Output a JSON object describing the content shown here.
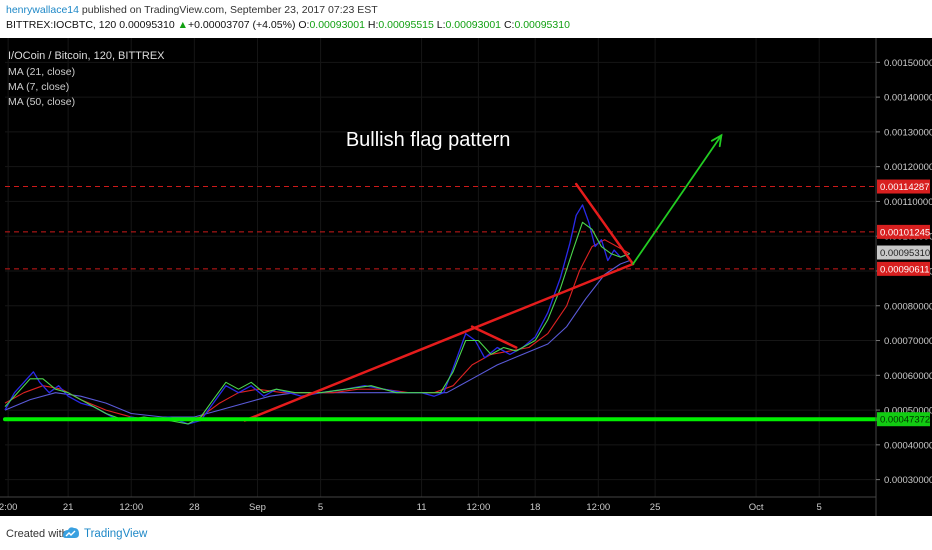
{
  "header": {
    "username": "henrywallace14",
    "published_text": "published on TradingView.com, September 23, 2017 07:23 EST",
    "symbol": "BITTREX:IOCBTC, 120",
    "last_price": "0.00095310",
    "change": "+0.00003707 (+4.05%)",
    "open_label": "O:",
    "open": "0.00093001",
    "high_label": "H:",
    "high": "0.00095515",
    "low_label": "L:",
    "low": "0.00093001",
    "close_label": "C:",
    "close": "0.00095310"
  },
  "legend": {
    "title": "I/OCoin / Bitcoin, 120, BITTREX",
    "ma1": "MA (21, close)",
    "ma2": "MA (7, close)",
    "ma3": "MA (50, close)"
  },
  "annotation": {
    "text": "Bullish flag pattern"
  },
  "footer": {
    "created_with": "Created with",
    "brand": "TradingView"
  },
  "colors": {
    "background": "#000000",
    "price_line": "#2a2ae8",
    "ma21": "#dd2222",
    "ma7": "#4cd64c",
    "ma50": "#5a5ad8",
    "trend_lines": "#e51c1c",
    "support_line": "#00ee00",
    "forecast_arrow": "#22cc22",
    "dashed_levels": "#cc1a1a",
    "axis_text": "#cccccc"
  },
  "chart_data": {
    "type": "line",
    "y_scale": "linear",
    "ylim": [
      0.00025,
      0.00157
    ],
    "xlim": [
      0,
      26
    ],
    "x_ticks": [
      {
        "x": 0.05,
        "label": "2:00"
      },
      {
        "x": 1,
        "label": "21"
      },
      {
        "x": 2,
        "label": "12:00"
      },
      {
        "x": 3,
        "label": "28"
      },
      {
        "x": 4,
        "label": "Sep"
      },
      {
        "x": 5,
        "label": "5"
      },
      {
        "x": 6.6,
        "label": "11"
      },
      {
        "x": 7.5,
        "label": "12:00"
      },
      {
        "x": 8.4,
        "label": "18"
      },
      {
        "x": 9.4,
        "label": "12:00"
      },
      {
        "x": 10.3,
        "label": "25"
      },
      {
        "x": 11.9,
        "label": "Oct"
      },
      {
        "x": 12.9,
        "label": "5"
      }
    ],
    "y_ticks": [
      "0.00030000",
      "0.00040000",
      "0.00050000",
      "0.00060000",
      "0.00070000",
      "0.00080000",
      "0.00090000",
      "0.00100000",
      "0.00110000",
      "0.00120000",
      "0.00130000",
      "0.00140000",
      "0.00150000"
    ],
    "price_levels": [
      {
        "value": 0.00114287,
        "label": "0.00114287",
        "kind": "resistance"
      },
      {
        "value": 0.00101245,
        "label": "0.00101245",
        "kind": "resistance"
      },
      {
        "value": 0.0009531,
        "label": "0.00095310",
        "kind": "last"
      },
      {
        "value": 0.00090611,
        "label": "0.00090611",
        "kind": "support"
      },
      {
        "value": 0.00047372,
        "label": "0.00047372",
        "kind": "support-green"
      }
    ],
    "series": [
      {
        "key": "price",
        "points": [
          [
            0,
            0.0005
          ],
          [
            0.15,
            0.00055
          ],
          [
            0.3,
            0.00058
          ],
          [
            0.45,
            0.00061
          ],
          [
            0.55,
            0.00058
          ],
          [
            0.7,
            0.00055
          ],
          [
            0.85,
            0.00057
          ],
          [
            1,
            0.00054
          ],
          [
            1.2,
            0.00052
          ],
          [
            1.4,
            0.00051
          ],
          [
            1.6,
            0.00049
          ],
          [
            1.8,
            0.00047
          ],
          [
            2,
            0.00048
          ],
          [
            2.3,
            0.00047
          ],
          [
            2.6,
            0.00048
          ],
          [
            2.9,
            0.00046
          ],
          [
            3.1,
            0.00047
          ],
          [
            3.3,
            0.00052
          ],
          [
            3.5,
            0.00057
          ],
          [
            3.7,
            0.00055
          ],
          [
            3.9,
            0.00057
          ],
          [
            4.1,
            0.00054
          ],
          [
            4.3,
            0.00056
          ],
          [
            4.5,
            0.00055
          ],
          [
            4.7,
            0.00054
          ],
          [
            5,
            0.00055
          ],
          [
            5.4,
            0.00056
          ],
          [
            5.7,
            0.00057
          ],
          [
            6,
            0.00056
          ],
          [
            6.3,
            0.00055
          ],
          [
            6.6,
            0.00055
          ],
          [
            6.8,
            0.00054
          ],
          [
            6.95,
            0.00055
          ],
          [
            7.1,
            0.00062
          ],
          [
            7.3,
            0.00072
          ],
          [
            7.45,
            0.0007
          ],
          [
            7.6,
            0.00065
          ],
          [
            7.8,
            0.00068
          ],
          [
            8,
            0.00066
          ],
          [
            8.2,
            0.00068
          ],
          [
            8.4,
            0.00071
          ],
          [
            8.6,
            0.00078
          ],
          [
            8.8,
            0.00088
          ],
          [
            8.95,
            0.00098
          ],
          [
            9.05,
            0.00106
          ],
          [
            9.15,
            0.00109
          ],
          [
            9.25,
            0.00104
          ],
          [
            9.35,
            0.00097
          ],
          [
            9.45,
            0.00099
          ],
          [
            9.55,
            0.00093
          ],
          [
            9.65,
            0.00096
          ],
          [
            9.75,
            0.00094
          ],
          [
            9.9,
            0.00095
          ]
        ]
      },
      {
        "key": "ma21",
        "points": [
          [
            0,
            0.00052
          ],
          [
            0.3,
            0.00055
          ],
          [
            0.6,
            0.00057
          ],
          [
            0.9,
            0.00056
          ],
          [
            1.2,
            0.00053
          ],
          [
            1.6,
            0.0005
          ],
          [
            2,
            0.00048
          ],
          [
            2.4,
            0.00047
          ],
          [
            2.8,
            0.00047
          ],
          [
            3.1,
            0.00048
          ],
          [
            3.4,
            0.00052
          ],
          [
            3.7,
            0.00055
          ],
          [
            4,
            0.00056
          ],
          [
            4.4,
            0.00055
          ],
          [
            4.8,
            0.00055
          ],
          [
            5.2,
            0.00055
          ],
          [
            5.6,
            0.00056
          ],
          [
            6,
            0.00056
          ],
          [
            6.4,
            0.00055
          ],
          [
            6.8,
            0.00055
          ],
          [
            7.1,
            0.00057
          ],
          [
            7.4,
            0.00063
          ],
          [
            7.7,
            0.00066
          ],
          [
            8,
            0.00067
          ],
          [
            8.3,
            0.00068
          ],
          [
            8.6,
            0.00072
          ],
          [
            8.9,
            0.0008
          ],
          [
            9.1,
            0.0009
          ],
          [
            9.3,
            0.00097
          ],
          [
            9.5,
            0.00099
          ],
          [
            9.7,
            0.00097
          ],
          [
            9.9,
            0.00095
          ]
        ]
      },
      {
        "key": "ma7",
        "points": [
          [
            0,
            0.00051
          ],
          [
            0.2,
            0.00055
          ],
          [
            0.4,
            0.00059
          ],
          [
            0.6,
            0.00059
          ],
          [
            0.8,
            0.00056
          ],
          [
            1,
            0.00055
          ],
          [
            1.3,
            0.00052
          ],
          [
            1.6,
            0.00049
          ],
          [
            1.9,
            0.00047
          ],
          [
            2.2,
            0.00048
          ],
          [
            2.6,
            0.00047
          ],
          [
            2.9,
            0.00046
          ],
          [
            3.1,
            0.00048
          ],
          [
            3.3,
            0.00053
          ],
          [
            3.5,
            0.00058
          ],
          [
            3.7,
            0.00056
          ],
          [
            3.9,
            0.00058
          ],
          [
            4.1,
            0.00055
          ],
          [
            4.3,
            0.00056
          ],
          [
            4.6,
            0.00055
          ],
          [
            5,
            0.00055
          ],
          [
            5.4,
            0.00056
          ],
          [
            5.8,
            0.00057
          ],
          [
            6.2,
            0.00055
          ],
          [
            6.6,
            0.00055
          ],
          [
            6.9,
            0.00055
          ],
          [
            7.1,
            0.00061
          ],
          [
            7.3,
            0.0007
          ],
          [
            7.5,
            0.0007
          ],
          [
            7.7,
            0.00066
          ],
          [
            7.9,
            0.00068
          ],
          [
            8.1,
            0.00067
          ],
          [
            8.4,
            0.0007
          ],
          [
            8.6,
            0.00076
          ],
          [
            8.8,
            0.00085
          ],
          [
            9,
            0.00096
          ],
          [
            9.15,
            0.00104
          ],
          [
            9.3,
            0.00102
          ],
          [
            9.45,
            0.00097
          ],
          [
            9.6,
            0.00095
          ],
          [
            9.75,
            0.00094
          ],
          [
            9.9,
            0.00095
          ]
        ]
      },
      {
        "key": "ma50",
        "points": [
          [
            0,
            0.0005
          ],
          [
            0.4,
            0.00053
          ],
          [
            0.8,
            0.00055
          ],
          [
            1.2,
            0.00054
          ],
          [
            1.6,
            0.00052
          ],
          [
            2,
            0.00049
          ],
          [
            2.5,
            0.00048
          ],
          [
            3,
            0.00048
          ],
          [
            3.4,
            0.0005
          ],
          [
            3.8,
            0.00052
          ],
          [
            4.2,
            0.00054
          ],
          [
            4.6,
            0.00055
          ],
          [
            5,
            0.00055
          ],
          [
            5.5,
            0.00055
          ],
          [
            6,
            0.00055
          ],
          [
            6.5,
            0.00055
          ],
          [
            7,
            0.00055
          ],
          [
            7.4,
            0.00059
          ],
          [
            7.8,
            0.00063
          ],
          [
            8.2,
            0.00066
          ],
          [
            8.6,
            0.00069
          ],
          [
            8.9,
            0.00074
          ],
          [
            9.2,
            0.00082
          ],
          [
            9.5,
            0.00089
          ],
          [
            9.75,
            0.00092
          ],
          [
            9.9,
            0.00093
          ]
        ]
      }
    ],
    "drawings": [
      {
        "key": "flag-pole-lower",
        "points": [
          [
            3.8,
            0.00047
          ],
          [
            9.95,
            0.00092
          ]
        ]
      },
      {
        "key": "flag-upper-1",
        "points": [
          [
            7.4,
            0.00074
          ],
          [
            8.1,
            0.00068
          ]
        ]
      },
      {
        "key": "flag-upper-2",
        "points": [
          [
            9.05,
            0.00115
          ],
          [
            9.95,
            0.00092
          ]
        ]
      },
      {
        "key": "forecast-arrow",
        "points": [
          [
            9.95,
            0.00092
          ],
          [
            11.35,
            0.00129
          ]
        ]
      },
      {
        "key": "green-support",
        "points": [
          [
            0,
            0.00047372
          ],
          [
            13.8,
            0.00047372
          ]
        ]
      }
    ],
    "annotation": {
      "x": 5.4,
      "y": 0.00126
    }
  }
}
